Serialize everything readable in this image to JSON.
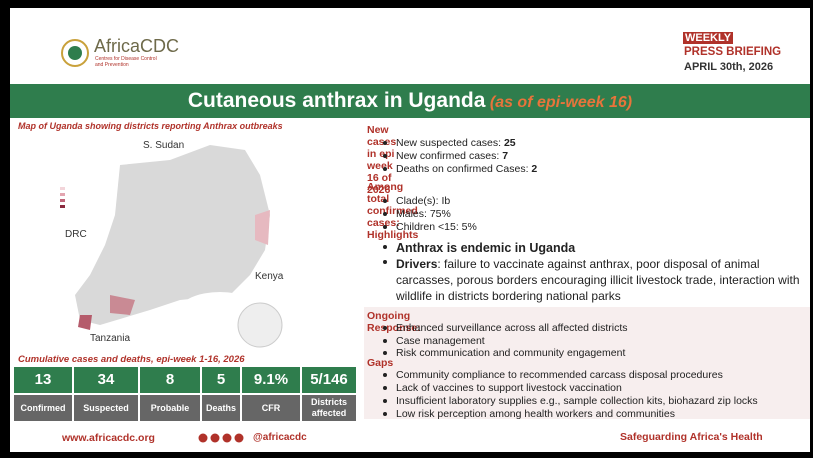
{
  "header": {
    "org": "AfricaCDC",
    "org_sub": [
      "Centres for Disease Control",
      "and Prevention"
    ],
    "badge": "WEEKLY",
    "line2": "PRESS BRIEFING",
    "date": "APRIL 30th, 2026"
  },
  "title": "Cutaneous anthrax in Uganda",
  "title_note": "(as of epi-week 16)",
  "map": {
    "caption": "Map of Uganda showing districts reporting Anthrax outbreaks",
    "labels": [
      "S. Sudan",
      "DRC",
      "Kenya",
      "Tanzania"
    ]
  },
  "new_cases": {
    "heading": "New cases in epi week 16 of 2026",
    "items": [
      {
        "label": "New suspected cases: ",
        "value": "25"
      },
      {
        "label": "New confirmed cases: ",
        "value": "7"
      },
      {
        "label": "Deaths on confirmed Cases: ",
        "value": "2"
      }
    ]
  },
  "confirmed": {
    "heading": "Among total confirmed cases:",
    "items": [
      "Clade(s): Ib",
      "Males: 75%",
      "Children <15: 5%"
    ]
  },
  "highlights": {
    "heading": "Highlights",
    "endemic": "Anthrax is endemic in Uganda",
    "drivers_label": "Drivers",
    "drivers_text": ":  failure to vaccinate against anthrax, poor disposal of animal carcasses, porous borders encouraging illicit livestock trade, interaction with wildlife in districts bordering national parks"
  },
  "response": {
    "heading": "Ongoing Response:",
    "items": [
      "Enhanced surveillance across all affected districts",
      "Case management",
      "Risk communication and community engagement"
    ]
  },
  "gaps": {
    "heading": "Gaps",
    "items": [
      "Community compliance to recommended carcass disposal procedures",
      "Lack of vaccines to support livestock vaccination",
      "Insufficient laboratory supplies e.g., sample collection kits, biohazard zip locks",
      "Low risk perception among health workers and communities"
    ]
  },
  "stats": {
    "caption": "Cumulative cases and deaths, epi-week 1-16, 2026",
    "items": [
      {
        "value": "13",
        "label": "Confirmed"
      },
      {
        "value": "34",
        "label": "Suspected"
      },
      {
        "value": "8",
        "label": "Probable"
      },
      {
        "value": "5",
        "label": "Deaths"
      },
      {
        "value": "9.1%",
        "label": "CFR"
      },
      {
        "value": "5/146",
        "label": "Districts affected"
      }
    ]
  },
  "footer": {
    "url": "www.africacdc.org",
    "handle": "@africacdc",
    "slogan": "Safeguarding Africa's Health"
  }
}
